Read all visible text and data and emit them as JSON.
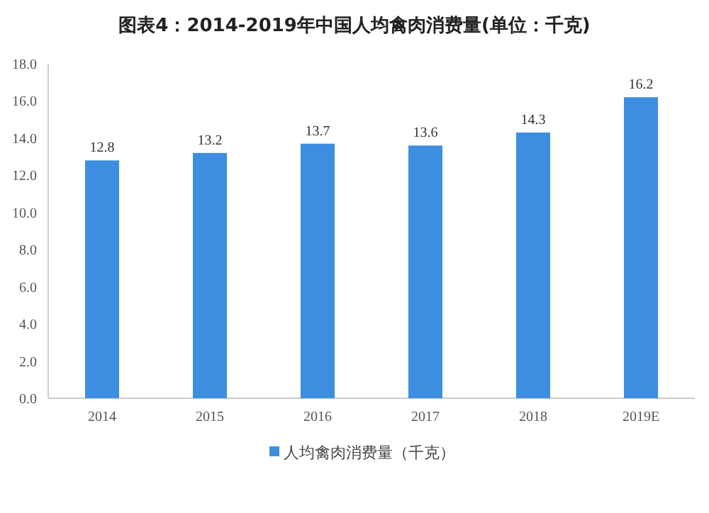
{
  "chart_data": {
    "type": "bar",
    "title": "图表4：2014-2019年中国人均禽肉消费量(单位：千克)",
    "categories": [
      "2014",
      "2015",
      "2016",
      "2017",
      "2018",
      "2019E"
    ],
    "series": [
      {
        "name": "人均禽肉消费量（千克）",
        "color": "#3d8ee0",
        "values": [
          12.8,
          13.2,
          13.7,
          13.6,
          14.3,
          16.2
        ]
      }
    ],
    "ylim": [
      0,
      18
    ],
    "yticks": [
      {
        "value": 0,
        "label": "0.0"
      },
      {
        "value": 2,
        "label": "2.0"
      },
      {
        "value": 4,
        "label": "4.0"
      },
      {
        "value": 6,
        "label": "6.0"
      },
      {
        "value": 8,
        "label": "8.0"
      },
      {
        "value": 10,
        "label": "10.0"
      },
      {
        "value": 12,
        "label": "12.0"
      },
      {
        "value": 14,
        "label": "14.0"
      },
      {
        "value": 16,
        "label": "16.0"
      },
      {
        "value": 18,
        "label": "18.0"
      }
    ],
    "data_labels": true,
    "legend": "bottom",
    "grid": false
  }
}
